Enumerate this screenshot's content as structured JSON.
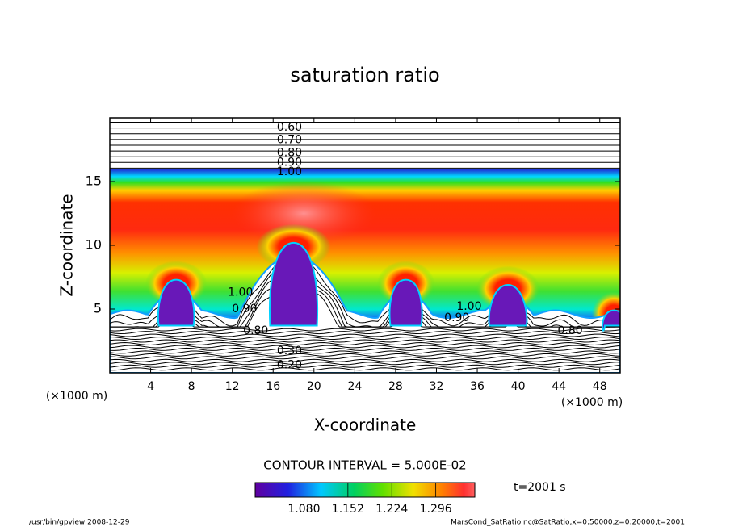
{
  "chart_data": {
    "type": "contour",
    "title": "saturation ratio",
    "x_label": "X-coordinate",
    "y_label": "Z-coordinate",
    "x_unit": "(×1000 m)",
    "y_unit": "(×1000 m)",
    "xlim": [
      0,
      50
    ],
    "xticks": [
      4,
      8,
      12,
      16,
      20,
      24,
      28,
      32,
      36,
      40,
      44,
      48
    ],
    "ylim": [
      0,
      20
    ],
    "yticks": [
      5,
      10,
      15
    ],
    "contour_labels": [
      "0.60",
      "0.70",
      "0.80",
      "0.90",
      "1.00",
      "1.00",
      "0.90",
      "0.80",
      "1.00",
      "0.90",
      "0.80",
      "0.30",
      "0.20"
    ],
    "contour_interval": "CONTOUR INTERVAL = 5.000E-02",
    "colorbar": {
      "clim": [
        1.0,
        1.36
      ],
      "ticks": [
        {
          "value": 1.08,
          "label": "1.080"
        },
        {
          "value": 1.152,
          "label": "1.152"
        },
        {
          "value": 1.224,
          "label": "1.224"
        },
        {
          "value": 1.296,
          "label": "1.296"
        }
      ]
    },
    "time": "t=2001 s"
  },
  "footer": {
    "left": "/usr/bin/gpview  2008-12-29",
    "right": "MarsCond_SatRatio.nc@SatRatio,x=0:50000,z=0:20000,t=2001"
  }
}
